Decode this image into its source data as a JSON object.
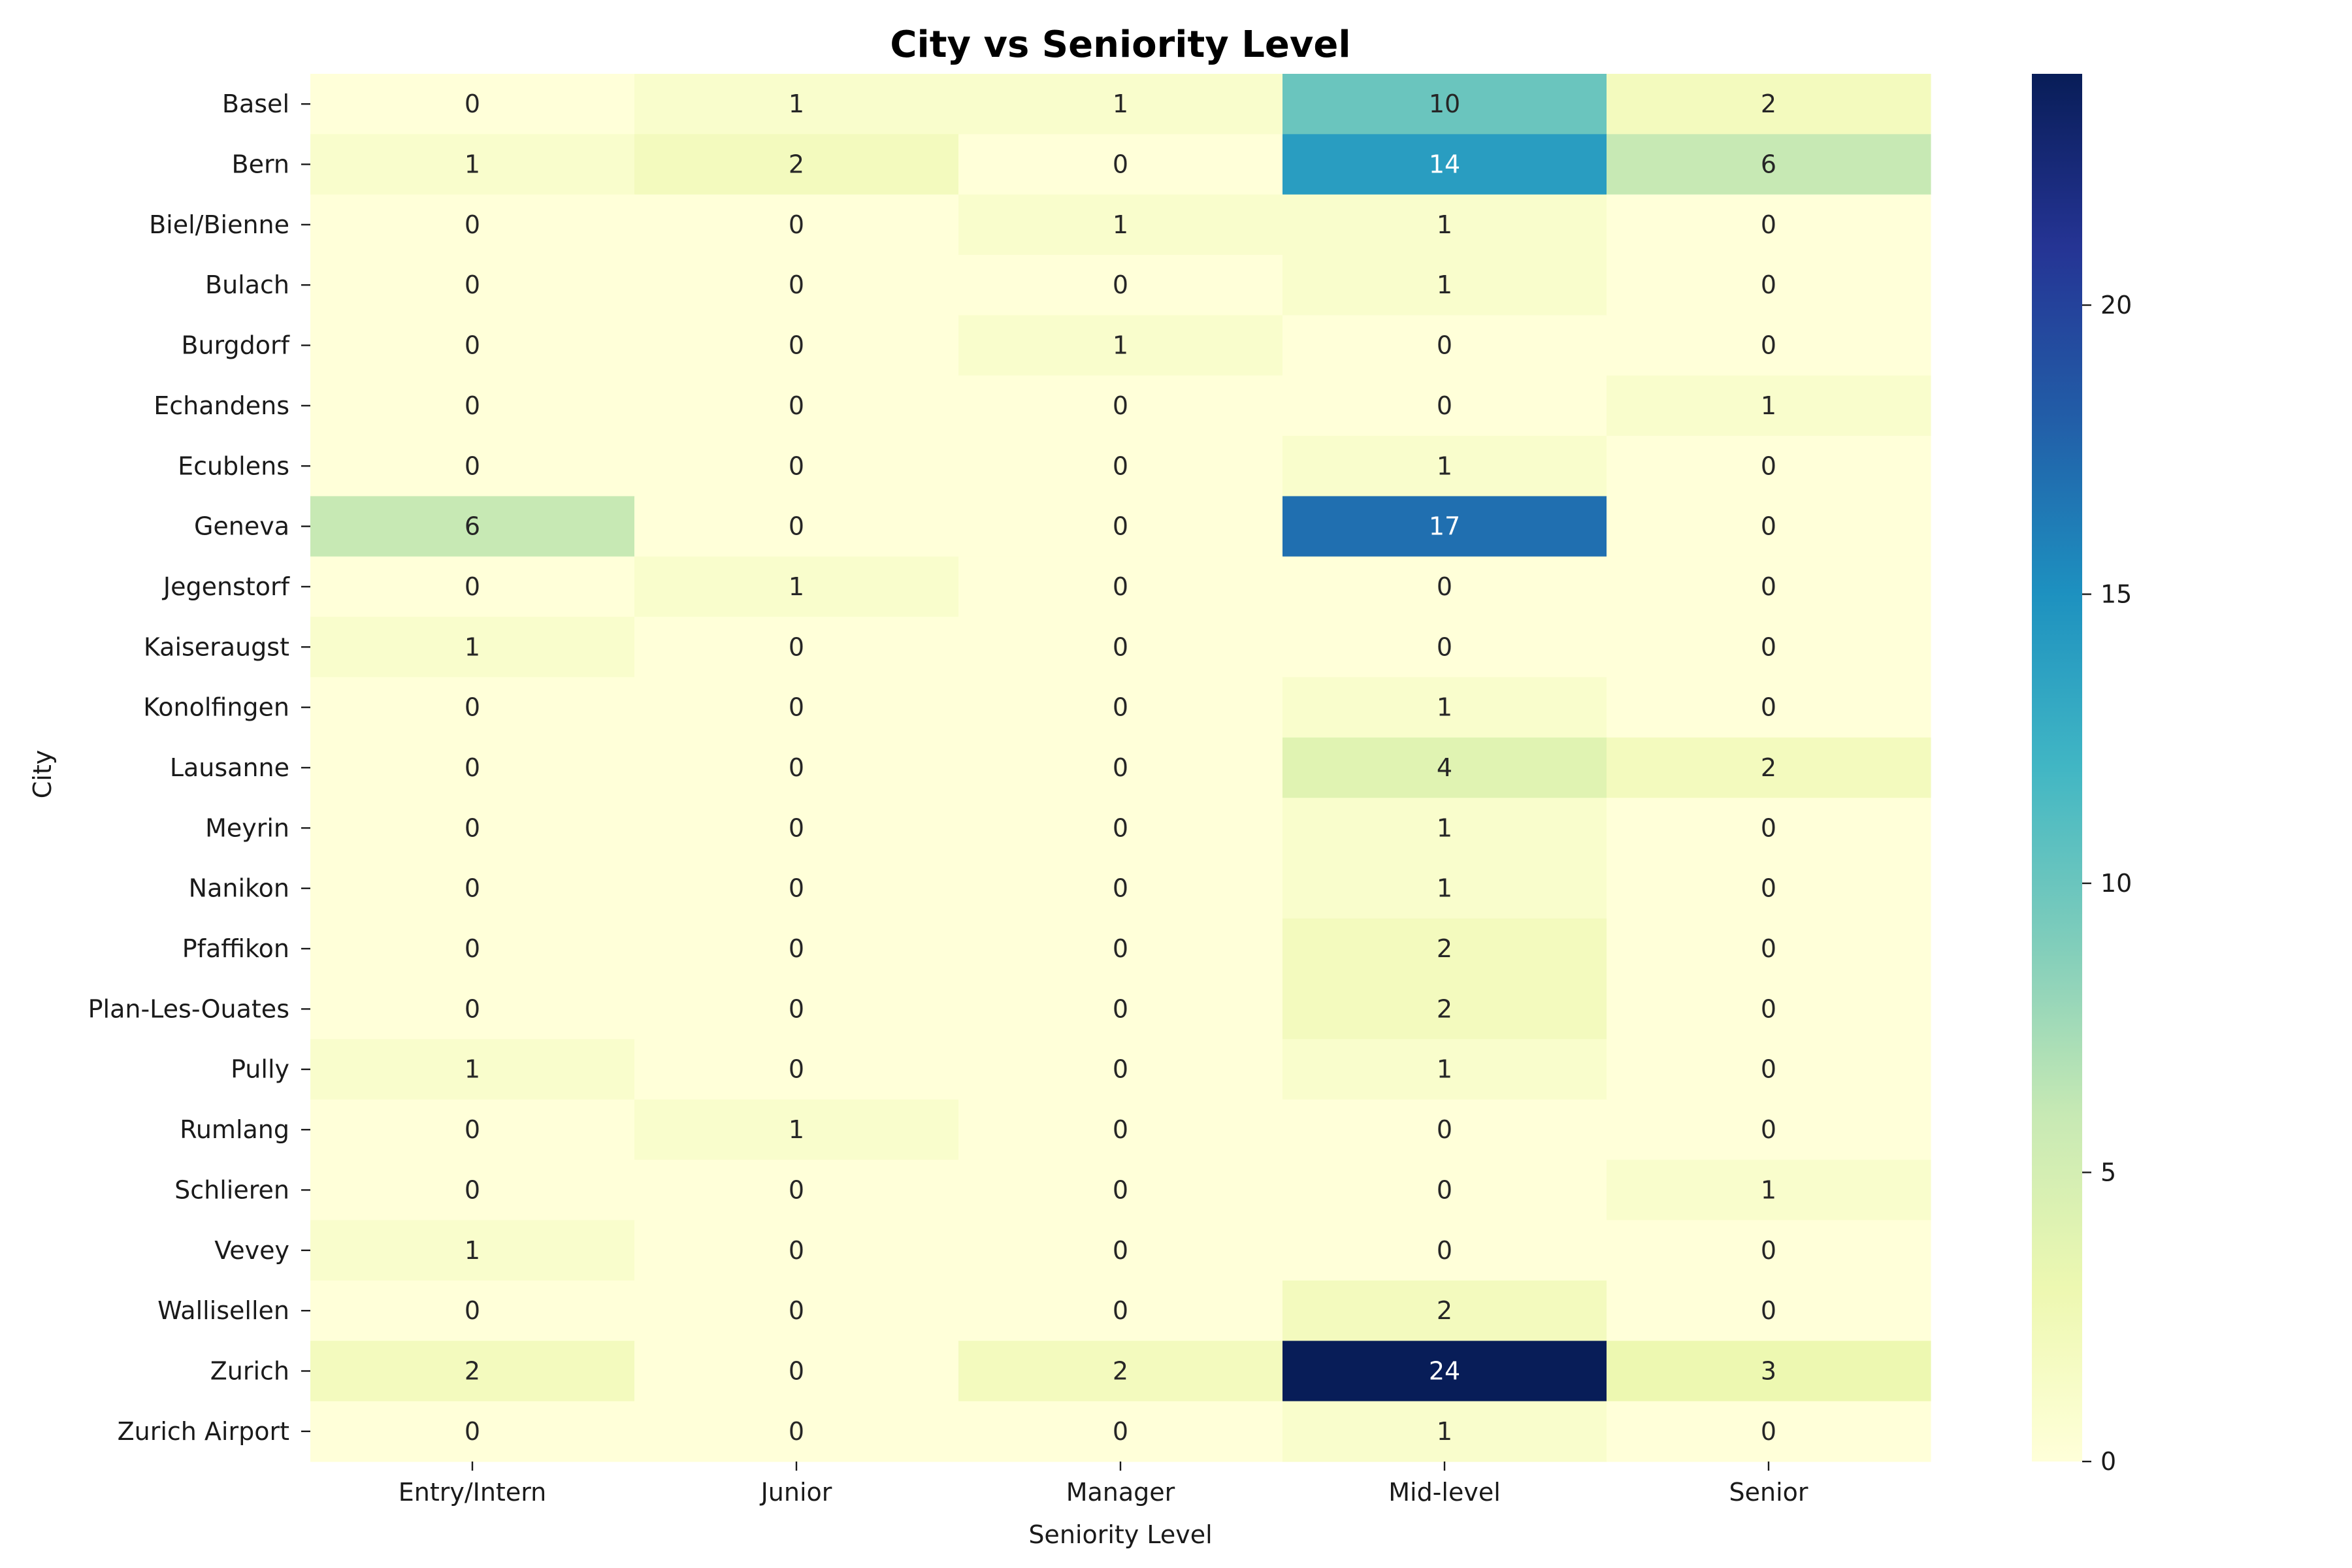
{
  "chart_data": {
    "type": "heatmap",
    "title": "City vs Seniority Level",
    "xlabel": "Seniority Level",
    "ylabel": "City",
    "x_categories": [
      "Entry/Intern",
      "Junior",
      "Manager",
      "Mid-level",
      "Senior"
    ],
    "y_categories": [
      "Basel",
      "Bern",
      "Biel/Bienne",
      "Bulach",
      "Burgdorf",
      "Echandens",
      "Ecublens",
      "Geneva",
      "Jegenstorf",
      "Kaiseraugst",
      "Konolfingen",
      "Lausanne",
      "Meyrin",
      "Nanikon",
      "Pfaffikon",
      "Plan-Les-Ouates",
      "Pully",
      "Rumlang",
      "Schlieren",
      "Vevey",
      "Wallisellen",
      "Zurich",
      "Zurich Airport"
    ],
    "values": [
      [
        0,
        1,
        1,
        10,
        2
      ],
      [
        1,
        2,
        0,
        14,
        6
      ],
      [
        0,
        0,
        1,
        1,
        0
      ],
      [
        0,
        0,
        0,
        1,
        0
      ],
      [
        0,
        0,
        1,
        0,
        0
      ],
      [
        0,
        0,
        0,
        0,
        1
      ],
      [
        0,
        0,
        0,
        1,
        0
      ],
      [
        6,
        0,
        0,
        17,
        0
      ],
      [
        0,
        1,
        0,
        0,
        0
      ],
      [
        1,
        0,
        0,
        0,
        0
      ],
      [
        0,
        0,
        0,
        1,
        0
      ],
      [
        0,
        0,
        0,
        4,
        2
      ],
      [
        0,
        0,
        0,
        1,
        0
      ],
      [
        0,
        0,
        0,
        1,
        0
      ],
      [
        0,
        0,
        0,
        2,
        0
      ],
      [
        0,
        0,
        0,
        2,
        0
      ],
      [
        1,
        0,
        0,
        1,
        0
      ],
      [
        0,
        1,
        0,
        0,
        0
      ],
      [
        0,
        0,
        0,
        0,
        1
      ],
      [
        1,
        0,
        0,
        0,
        0
      ],
      [
        0,
        0,
        0,
        2,
        0
      ],
      [
        2,
        0,
        2,
        24,
        3
      ],
      [
        0,
        0,
        0,
        1,
        0
      ]
    ],
    "colormap": "YlGnBu",
    "colorbar": {
      "min": 0,
      "max": 24,
      "ticks": [
        0,
        5,
        10,
        15,
        20
      ]
    },
    "annotated": true,
    "grid": false
  },
  "colors": {
    "colormap_stops": [
      "#ffffd9",
      "#edf8b1",
      "#c7e9b4",
      "#7fcdbb",
      "#41b6c4",
      "#1d91c0",
      "#225ea8",
      "#253494",
      "#081d58"
    ],
    "text_dark": "#262626",
    "text_light": "#ffffff"
  }
}
